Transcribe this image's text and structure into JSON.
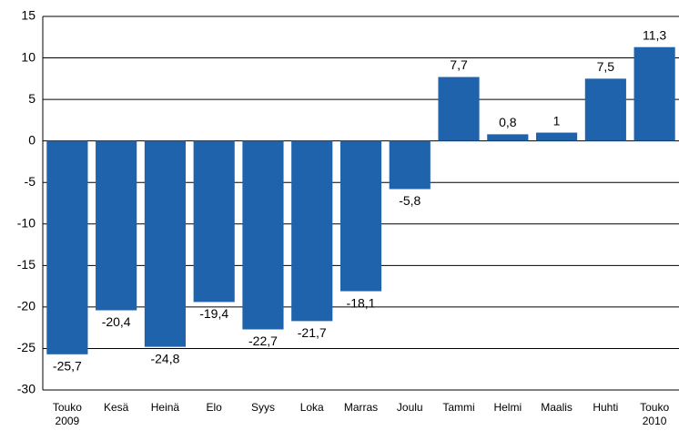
{
  "chart_data": {
    "type": "bar",
    "categories": [
      "Touko\n2009",
      "Kesä",
      "Heinä",
      "Elo",
      "Syys",
      "Loka",
      "Marras",
      "Joulu",
      "Tammi",
      "Helmi",
      "Maalis",
      "Huhti",
      "Touko\n2010"
    ],
    "values": [
      -25.7,
      -20.4,
      -24.8,
      -19.4,
      -22.7,
      -21.7,
      -18.1,
      -5.8,
      7.7,
      0.8,
      1,
      7.5,
      11.3
    ],
    "value_labels": [
      "-25,7",
      "-20,4",
      "-24,8",
      "-19,4",
      "-22,7",
      "-21,7",
      "-18,1",
      "-5,8",
      "7,7",
      "0,8",
      "1",
      "7,5",
      "11,3"
    ],
    "color": "#1f63ad",
    "ylim": [
      -30,
      15
    ],
    "yticks": [
      -30,
      -25,
      -20,
      -15,
      -10,
      -5,
      0,
      5,
      10,
      15
    ],
    "grid": true
  }
}
